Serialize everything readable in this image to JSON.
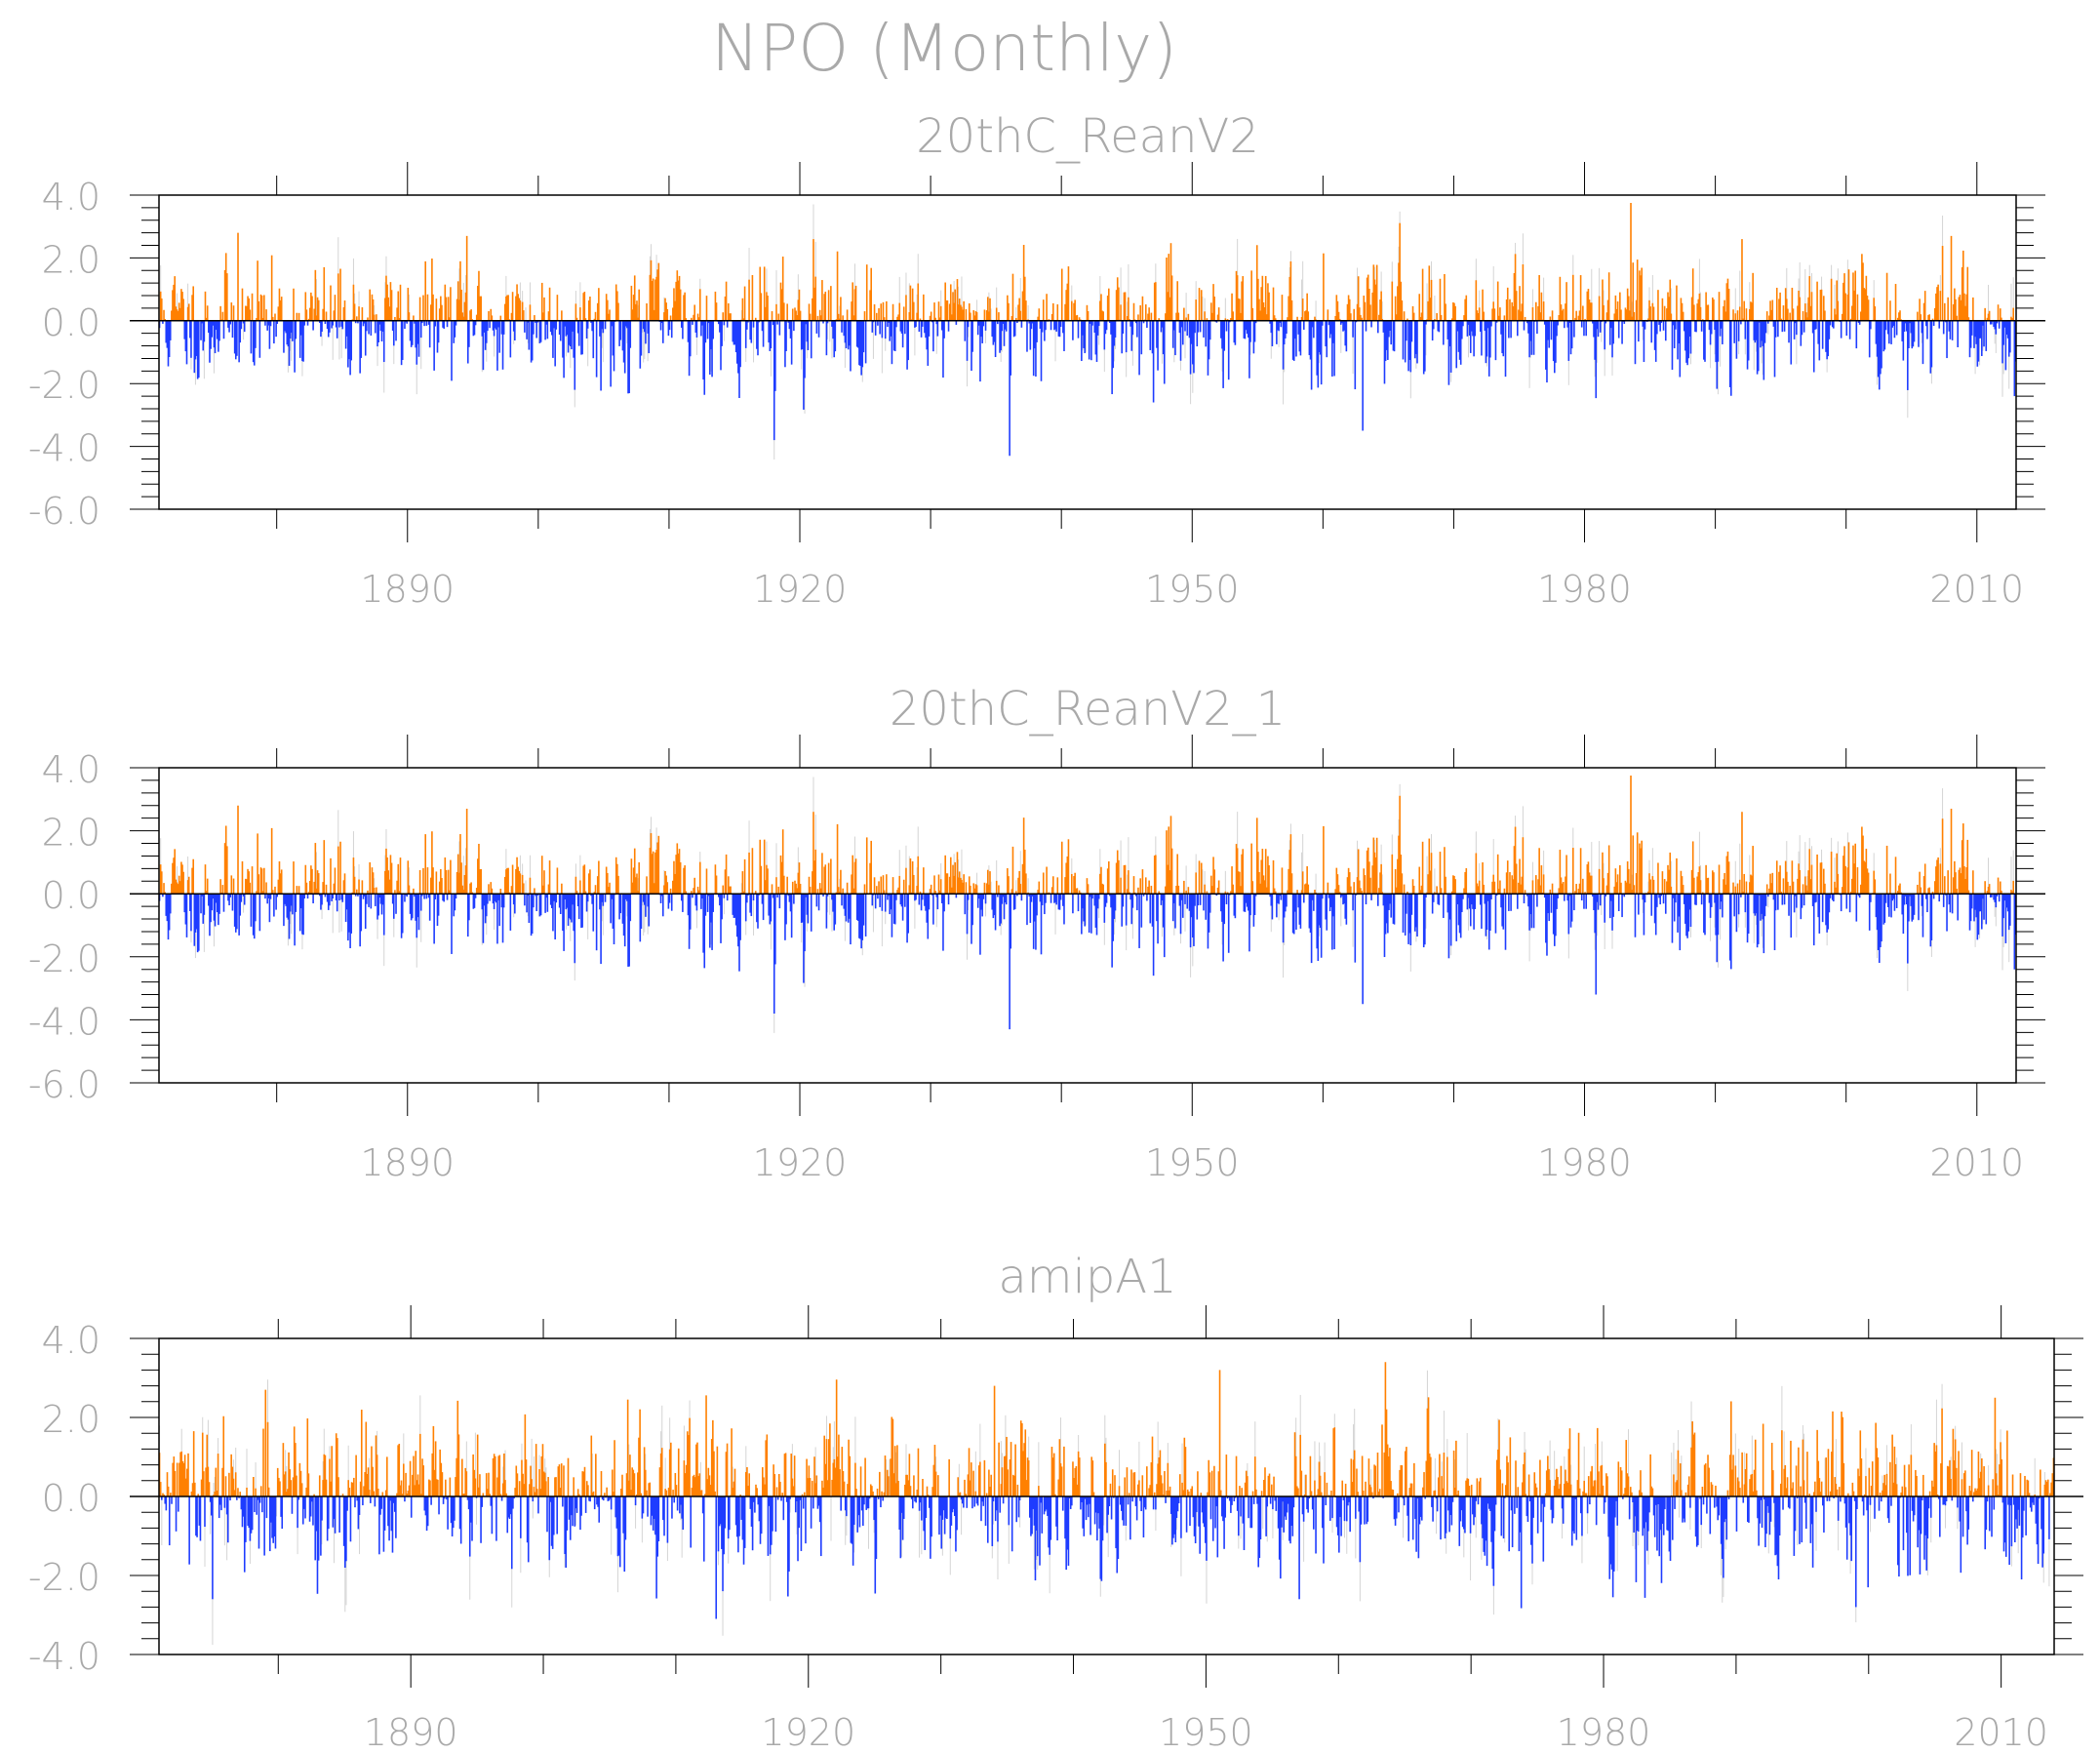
{
  "figure": {
    "title": "NPO (Monthly)",
    "colors": {
      "positive": "#ff8000",
      "negative": "#1e3cff",
      "spread": "#d4d4d4",
      "frame": "#000000",
      "text": "#a9a9a9"
    }
  },
  "chart_data": [
    {
      "type": "bar",
      "title": "20thC_ReanV2",
      "xlabel": "",
      "ylabel": "",
      "x_range": [
        1871,
        2013
      ],
      "ylim": [
        -6.0,
        4.0
      ],
      "yticks": [
        "4.0",
        "2.0",
        "0.0",
        "-2.0",
        "-4.0",
        "-6.0"
      ],
      "ytick_values": [
        4,
        2,
        0,
        -2,
        -4,
        -6
      ],
      "xticks": [
        "1890",
        "1920",
        "1950",
        "1980",
        "2010"
      ],
      "xtick_values": [
        1890,
        1920,
        1950,
        1980,
        2010
      ],
      "baseline": 0,
      "grid": false,
      "legend": "none",
      "description_of_series": "monthly index, positive bars orange, negative bars blue",
      "seed": 11,
      "extremes": [
        {
          "x": 1877.0,
          "y": 2.8
        },
        {
          "x": 1894.5,
          "y": 2.7
        },
        {
          "x": 1921.0,
          "y": 2.6
        },
        {
          "x": 1918.0,
          "y": -3.8
        },
        {
          "x": 1936.0,
          "y": -4.3
        },
        {
          "x": 1947.0,
          "y": -2.6
        },
        {
          "x": 1963.0,
          "y": -3.5
        },
        {
          "x": 1992.0,
          "y": 2.6
        },
        {
          "x": 2008.0,
          "y": 2.7
        },
        {
          "x": 2012.8,
          "y": -2.4
        },
        {
          "x": 1905.5,
          "y": -2.1
        }
      ]
    },
    {
      "type": "bar",
      "title": "20thC_ReanV2_1",
      "xlabel": "",
      "ylabel": "",
      "x_range": [
        1871,
        2013
      ],
      "ylim": [
        -6.0,
        4.0
      ],
      "yticks": [
        "4.0",
        "2.0",
        "0.0",
        "-2.0",
        "-4.0",
        "-6.0"
      ],
      "ytick_values": [
        4,
        2,
        0,
        -2,
        -4,
        -6
      ],
      "xticks": [
        "1890",
        "1920",
        "1950",
        "1980",
        "2010"
      ],
      "xtick_values": [
        1890,
        1920,
        1950,
        1980,
        2010
      ],
      "baseline": 0,
      "grid": false,
      "legend": "none",
      "seed": 11,
      "extremes": [
        {
          "x": 1877.0,
          "y": 2.8
        },
        {
          "x": 1894.5,
          "y": 2.7
        },
        {
          "x": 1921.0,
          "y": 2.6
        },
        {
          "x": 1918.0,
          "y": -3.8
        },
        {
          "x": 1936.0,
          "y": -4.3
        },
        {
          "x": 1947.0,
          "y": -2.6
        },
        {
          "x": 1963.0,
          "y": -3.5
        },
        {
          "x": 1992.0,
          "y": 2.6
        },
        {
          "x": 2008.0,
          "y": 2.7
        },
        {
          "x": 1980.8,
          "y": -3.2
        },
        {
          "x": 2012.8,
          "y": -2.4
        }
      ]
    },
    {
      "type": "bar",
      "title": "amipA1",
      "xlabel": "",
      "ylabel": "",
      "x_range": [
        1871,
        2014
      ],
      "ylim": [
        -4.0,
        4.0
      ],
      "yticks": [
        "4.0",
        "2.0",
        "0.0",
        "-2.0",
        "-4.0"
      ],
      "ytick_values": [
        4,
        2,
        0,
        -2,
        -4
      ],
      "xticks": [
        "1890",
        "1920",
        "1950",
        "1980",
        "2010"
      ],
      "xtick_values": [
        1890,
        1920,
        1950,
        1980,
        2010
      ],
      "baseline": 0,
      "grid": false,
      "legend": "none",
      "seed": 29,
      "extremes": [
        {
          "x": 1879.0,
          "y": 2.7
        },
        {
          "x": 1934.0,
          "y": 2.8
        },
        {
          "x": 1951.0,
          "y": 3.2
        },
        {
          "x": 1963.5,
          "y": 3.4
        },
        {
          "x": 2009.5,
          "y": 2.5
        },
        {
          "x": 1913.0,
          "y": -3.1
        },
        {
          "x": 1875.0,
          "y": -2.6
        },
        {
          "x": 1957.0,
          "y": -2.6
        },
        {
          "x": 2011.5,
          "y": -2.1
        },
        {
          "x": 1999.0,
          "y": -2.8
        }
      ]
    }
  ]
}
